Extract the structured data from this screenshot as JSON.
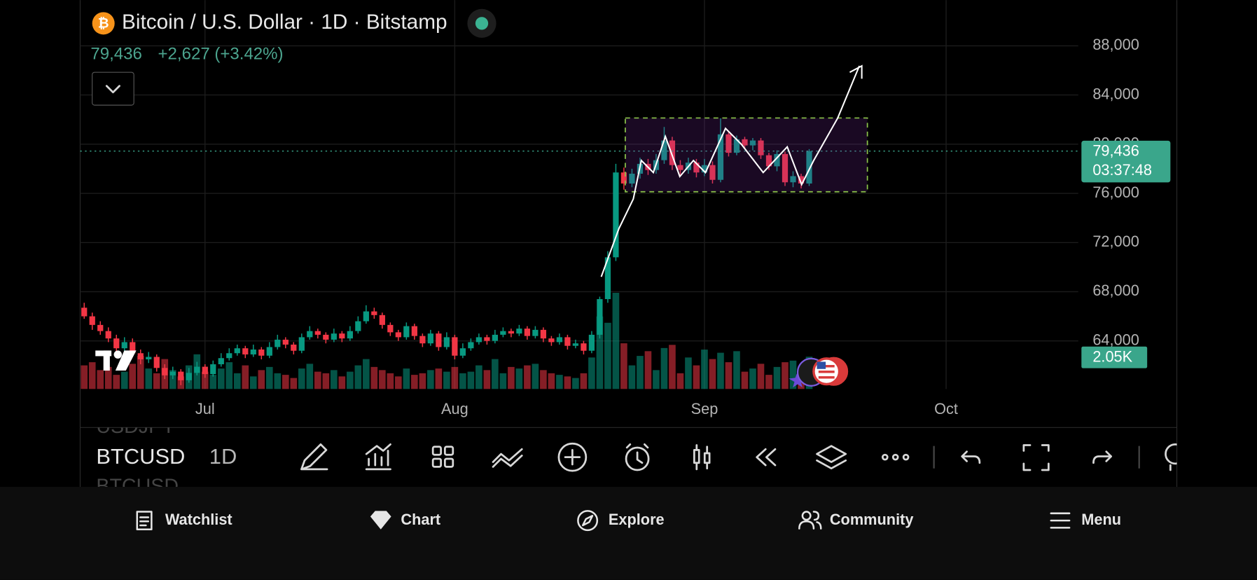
{
  "header": {
    "title": "Bitcoin / U.S. Dollar · 1D · Bitstamp",
    "last_price": "79,436",
    "change": "+2,627 (+3.42%)"
  },
  "chart_data": {
    "type": "candlestick",
    "open": [
      66700,
      66000,
      65300,
      64800,
      64200,
      63400,
      63900,
      63000,
      62500,
      62700,
      61800,
      61200,
      61500,
      60800,
      61400,
      61900,
      61300,
      62100,
      62600,
      63000,
      63400,
      62900,
      63300,
      62800,
      63500,
      64100,
      63700,
      63200,
      64300,
      64800,
      64500,
      64100,
      64600,
      64200,
      64800,
      65600,
      66400,
      66100,
      65300,
      64700,
      64300,
      65200,
      64400,
      63800,
      64600,
      63500,
      64300,
      62800,
      63400,
      63900,
      64300,
      64000,
      64500,
      64800,
      64600,
      65000,
      64400,
      64900,
      64200,
      63900,
      64300,
      63600,
      63800,
      63200,
      64500,
      67400,
      70800,
      77700,
      76800,
      77600,
      78400,
      77900,
      78700,
      80300,
      78300,
      77900,
      78500,
      77700,
      78300,
      77100,
      80800,
      79300,
      80400,
      79900,
      80300,
      79100,
      78200,
      79200,
      76900,
      77400,
      76800
    ],
    "high": [
      67100,
      66300,
      65600,
      65100,
      64500,
      64300,
      64200,
      63300,
      63100,
      62900,
      62100,
      61900,
      61700,
      61800,
      62300,
      62100,
      62400,
      63000,
      63400,
      63700,
      63600,
      63700,
      63500,
      63900,
      64500,
      64300,
      63900,
      64600,
      65200,
      65000,
      64700,
      65000,
      64800,
      65200,
      66000,
      66900,
      66700,
      66300,
      65500,
      64900,
      65500,
      65400,
      64600,
      64900,
      64800,
      64700,
      64500,
      63800,
      64200,
      64600,
      64500,
      64900,
      65100,
      65000,
      65300,
      65200,
      65200,
      65100,
      64400,
      64600,
      64500,
      64100,
      64000,
      64800,
      67600,
      71300,
      78400,
      78100,
      78000,
      78900,
      78800,
      79200,
      81400,
      80600,
      78700,
      78900,
      78800,
      78800,
      78600,
      82100,
      81100,
      80700,
      80600,
      80500,
      80500,
      79300,
      79500,
      79400,
      77800,
      77600,
      79600
    ],
    "low": [
      65800,
      64900,
      64500,
      63900,
      63100,
      63200,
      62700,
      62100,
      62200,
      61500,
      60900,
      60900,
      60400,
      60600,
      61200,
      61000,
      61100,
      61900,
      62400,
      62800,
      62600,
      62700,
      62500,
      62600,
      63300,
      63400,
      62900,
      63000,
      64100,
      64200,
      63800,
      63900,
      63900,
      64000,
      64600,
      65400,
      65800,
      65000,
      64400,
      64000,
      64100,
      64100,
      63500,
      63600,
      63200,
      63300,
      62500,
      62600,
      63200,
      63700,
      63700,
      63800,
      64300,
      64300,
      64400,
      64100,
      64200,
      63900,
      63600,
      63700,
      63300,
      63400,
      62900,
      63000,
      64200,
      67100,
      70500,
      76300,
      76500,
      77200,
      77500,
      77600,
      78400,
      77900,
      77500,
      77600,
      77300,
      77400,
      76800,
      76900,
      79000,
      79100,
      79600,
      79500,
      78800,
      77900,
      77800,
      76600,
      76500,
      76400,
      76600
    ],
    "close": [
      66000,
      65300,
      64800,
      64200,
      63400,
      63900,
      63000,
      62500,
      62700,
      61800,
      61200,
      61500,
      60800,
      61400,
      61900,
      61300,
      62100,
      62600,
      63000,
      63400,
      62900,
      63300,
      62800,
      63500,
      64100,
      63700,
      63200,
      64300,
      64800,
      64500,
      64100,
      64600,
      64200,
      64800,
      65600,
      66400,
      66100,
      65300,
      64700,
      64300,
      65200,
      64400,
      63800,
      64600,
      63500,
      64300,
      62800,
      63400,
      63900,
      64300,
      64000,
      64500,
      64800,
      64600,
      65000,
      64400,
      64900,
      64200,
      63900,
      64300,
      63600,
      63800,
      63200,
      64500,
      67400,
      70800,
      77700,
      76800,
      77600,
      78400,
      77900,
      78700,
      80300,
      78300,
      77900,
      78500,
      77700,
      78300,
      77100,
      80800,
      79300,
      80400,
      79900,
      80300,
      79100,
      78200,
      79200,
      76900,
      77400,
      76800,
      79436
    ],
    "volume": [
      1500,
      1700,
      1200,
      1400,
      900,
      1100,
      1600,
      2100,
      1300,
      1000,
      1900,
      1200,
      800,
      1500,
      2200,
      1100,
      900,
      1300,
      1700,
      1000,
      1500,
      800,
      1200,
      1400,
      1000,
      900,
      700,
      1300,
      1600,
      1100,
      1000,
      1200,
      800,
      1100,
      1500,
      1900,
      1400,
      1200,
      1000,
      800,
      1300,
      900,
      1000,
      1200,
      1300,
      1100,
      1400,
      1000,
      1100,
      1500,
      1200,
      1900,
      1000,
      1400,
      1300,
      1500,
      1600,
      1200,
      1000,
      900,
      800,
      700,
      1000,
      2000,
      4600,
      4200,
      6100,
      2900,
      1500,
      2100,
      2400,
      1200,
      2600,
      2800,
      1000,
      2000,
      1500,
      2500,
      1900,
      2300,
      1700,
      2400,
      1100,
      1300,
      1600,
      900,
      1400,
      1700,
      1800,
      1400,
      2050
    ],
    "up_color": "#089981",
    "down_color": "#f23645",
    "xlim": [
      -0.5,
      123.4
    ],
    "xticks": [
      {
        "value": 15,
        "label": "Jul"
      },
      {
        "value": 46,
        "label": "Aug"
      },
      {
        "value": 77,
        "label": "Sep"
      },
      {
        "value": 107,
        "label": "Oct"
      }
    ],
    "ylim": [
      60086,
      91717
    ],
    "yticks": [
      {
        "value": 64000,
        "label": "64,000"
      },
      {
        "value": 68000,
        "label": "68,000"
      },
      {
        "value": 72000,
        "label": "72,000"
      },
      {
        "value": 76000,
        "label": "76,000"
      },
      {
        "value": 80000,
        "label": "80,000"
      },
      {
        "value": 84000,
        "label": "84,000"
      },
      {
        "value": 88000,
        "label": "88,000"
      }
    ],
    "grid": true,
    "price_label": {
      "value": 79436,
      "label": "79,436"
    },
    "countdown": "03:37:48",
    "volume_label": {
      "value": 2050,
      "label": "2.05K"
    }
  },
  "toolbar": {
    "symbol": "BTCUSD",
    "interval": "1D",
    "symbol_above": "USDJPY",
    "symbol_below": "BTCUSD"
  },
  "nav": [
    "Watchlist",
    "Chart",
    "Explore",
    "Community",
    "Menu"
  ]
}
